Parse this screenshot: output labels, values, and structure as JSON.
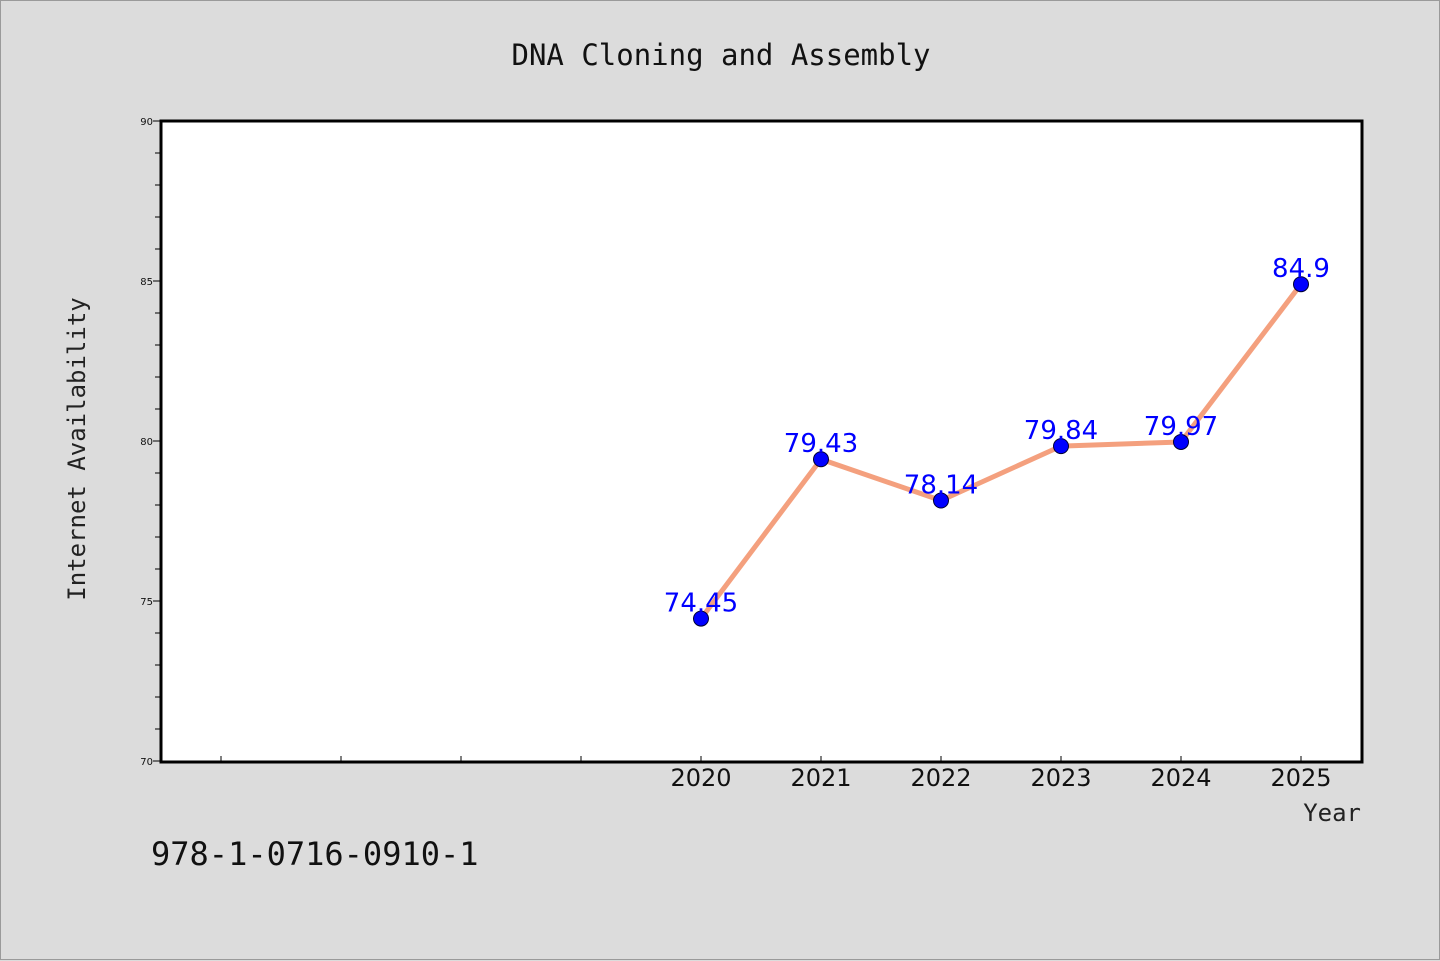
{
  "chart_data": {
    "type": "line",
    "title": "DNA Cloning and Assembly",
    "xlabel": "Year",
    "ylabel": "Internet Availability",
    "x": [
      "2020",
      "2021",
      "2022",
      "2023",
      "2024",
      "2025"
    ],
    "series": [
      {
        "values": [
          74.45,
          79.43,
          78.14,
          79.84,
          79.97,
          84.9
        ]
      }
    ],
    "data_labels": [
      "74.45",
      "79.43",
      "78.14",
      "79.84",
      "79.97",
      "84.9"
    ],
    "ylim": [
      70,
      90
    ],
    "yticks": [
      70,
      75,
      80,
      85,
      90
    ],
    "grid": false,
    "legend": "none",
    "line_color": "#f4a07e",
    "marker_color": "#0000ff",
    "label_color": "#0000ff"
  },
  "footer": {
    "isbn": "978-1-0716-0910-1"
  }
}
